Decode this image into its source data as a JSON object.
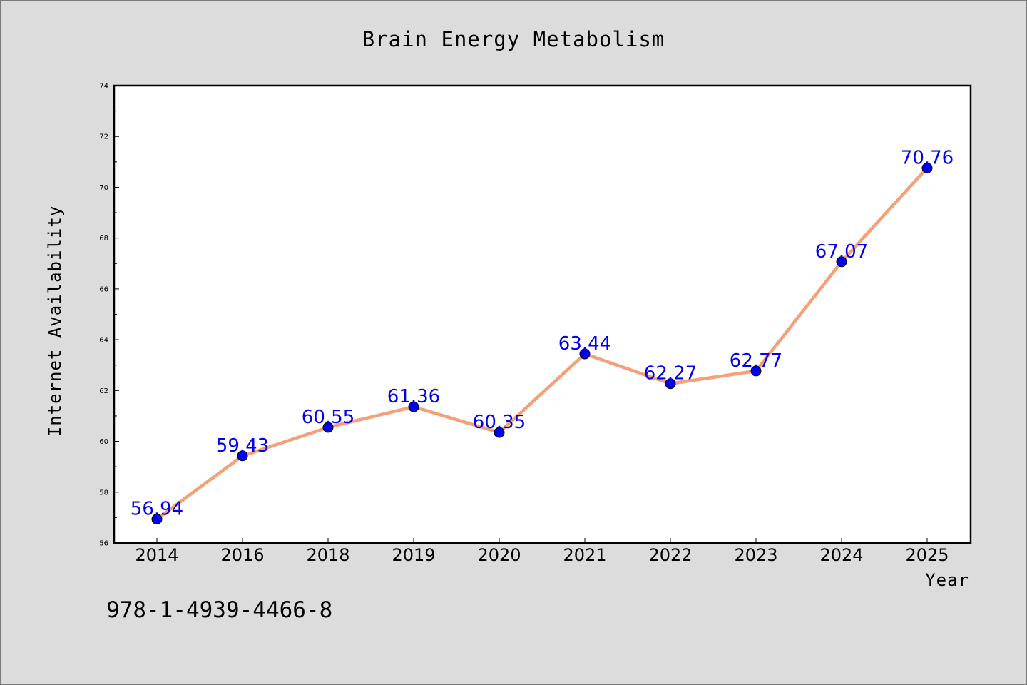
{
  "chart_data": {
    "type": "line",
    "title": "Brain Energy Metabolism",
    "xlabel": "Year",
    "ylabel": "Internet Availability",
    "categories": [
      "2014",
      "2016",
      "2018",
      "2019",
      "2020",
      "2021",
      "2022",
      "2023",
      "2024",
      "2025"
    ],
    "series": [
      {
        "values": [
          56.94,
          59.43,
          60.55,
          61.36,
          60.35,
          63.44,
          62.27,
          62.77,
          67.07,
          70.76
        ],
        "data_labels": [
          "56.94",
          "59.43",
          "60.55",
          "61.36",
          "60.35",
          "63.44",
          "62.27",
          "62.77",
          "67.07",
          "70.76"
        ]
      }
    ],
    "ylim": [
      56,
      74
    ],
    "yticks": [
      "56",
      "58",
      "60",
      "62",
      "64",
      "66",
      "68",
      "70",
      "72",
      "74"
    ],
    "grid": false,
    "legend": "none",
    "colors": {
      "line": "#f4a078",
      "marker": "#0000ee",
      "label": "#0000ee",
      "plot_bg": "#ffffff",
      "page_bg": "#dcdcdc"
    }
  },
  "footnote": "978-1-4939-4466-8"
}
